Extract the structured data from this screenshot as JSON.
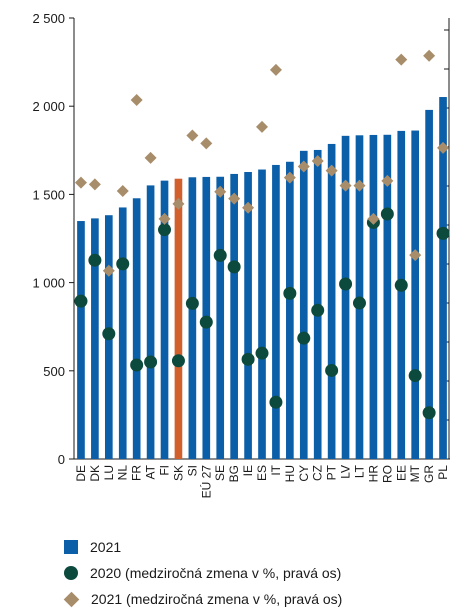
{
  "chart_data": {
    "type": "bar",
    "categories": [
      "DE",
      "DK",
      "LU",
      "NL",
      "FR",
      "AT",
      "FI",
      "SK",
      "SI",
      "EÚ 27",
      "SE",
      "BG",
      "IE",
      "ES",
      "IT",
      "HU",
      "CY",
      "CZ",
      "PT",
      "LV",
      "LT",
      "HR",
      "RO",
      "EE",
      "MT",
      "GR",
      "PL"
    ],
    "highlight_category": "SK",
    "left_axis": {
      "min": 0,
      "max": 2500,
      "ticks": [
        0,
        500,
        1000,
        1500,
        2000,
        2500
      ],
      "tick_labels": [
        "0",
        "500",
        "1 000",
        "1 500",
        "2 000",
        "2 500"
      ]
    },
    "right_axis": {
      "tick_labels_visible": false
    },
    "series": [
      {
        "name": "2021",
        "kind": "bar",
        "axis": "left",
        "values": [
          1349,
          1364,
          1382,
          1426,
          1478,
          1551,
          1578,
          1589,
          1597,
          1599,
          1600,
          1616,
          1627,
          1641,
          1667,
          1685,
          1747,
          1752,
          1786,
          1832,
          1835,
          1837,
          1838,
          1860,
          1862,
          1979,
          2052
        ]
      },
      {
        "name": "2020 (medziročná zmena v %, pravá os)",
        "kind": "circle",
        "axis": "right",
        "values": [
          895,
          1127,
          710,
          1106,
          533,
          550,
          1300,
          557,
          882,
          776,
          1154,
          1089,
          565,
          600,
          322,
          939,
          685,
          843,
          502,
          992,
          884,
          1341,
          1389,
          985,
          473,
          262,
          1279
        ]
      },
      {
        "name": "2021 (medziročná zmena v %, pravá os)",
        "kind": "diamond",
        "axis": "right",
        "values": [
          1567,
          1557,
          1067,
          1519,
          2035,
          1707,
          1361,
          1446,
          1834,
          1789,
          1515,
          1476,
          1424,
          1883,
          2206,
          1595,
          1658,
          1689,
          1635,
          1550,
          1550,
          1361,
          1577,
          2264,
          1156,
          2286,
          1764
        ]
      }
    ],
    "colors": {
      "bar": "#0b5ea8",
      "bar_highlight": "#d2602d",
      "circle": "#0d4a3e",
      "diamond": "#a88d6a"
    },
    "legend_position": "bottom",
    "grid": false
  },
  "legend": {
    "items": [
      {
        "label": "2021"
      },
      {
        "label": "2020 (medziročná zmena v %, pravá os)"
      },
      {
        "label": "2021 (medziročná zmena v %, pravá os)"
      }
    ]
  }
}
